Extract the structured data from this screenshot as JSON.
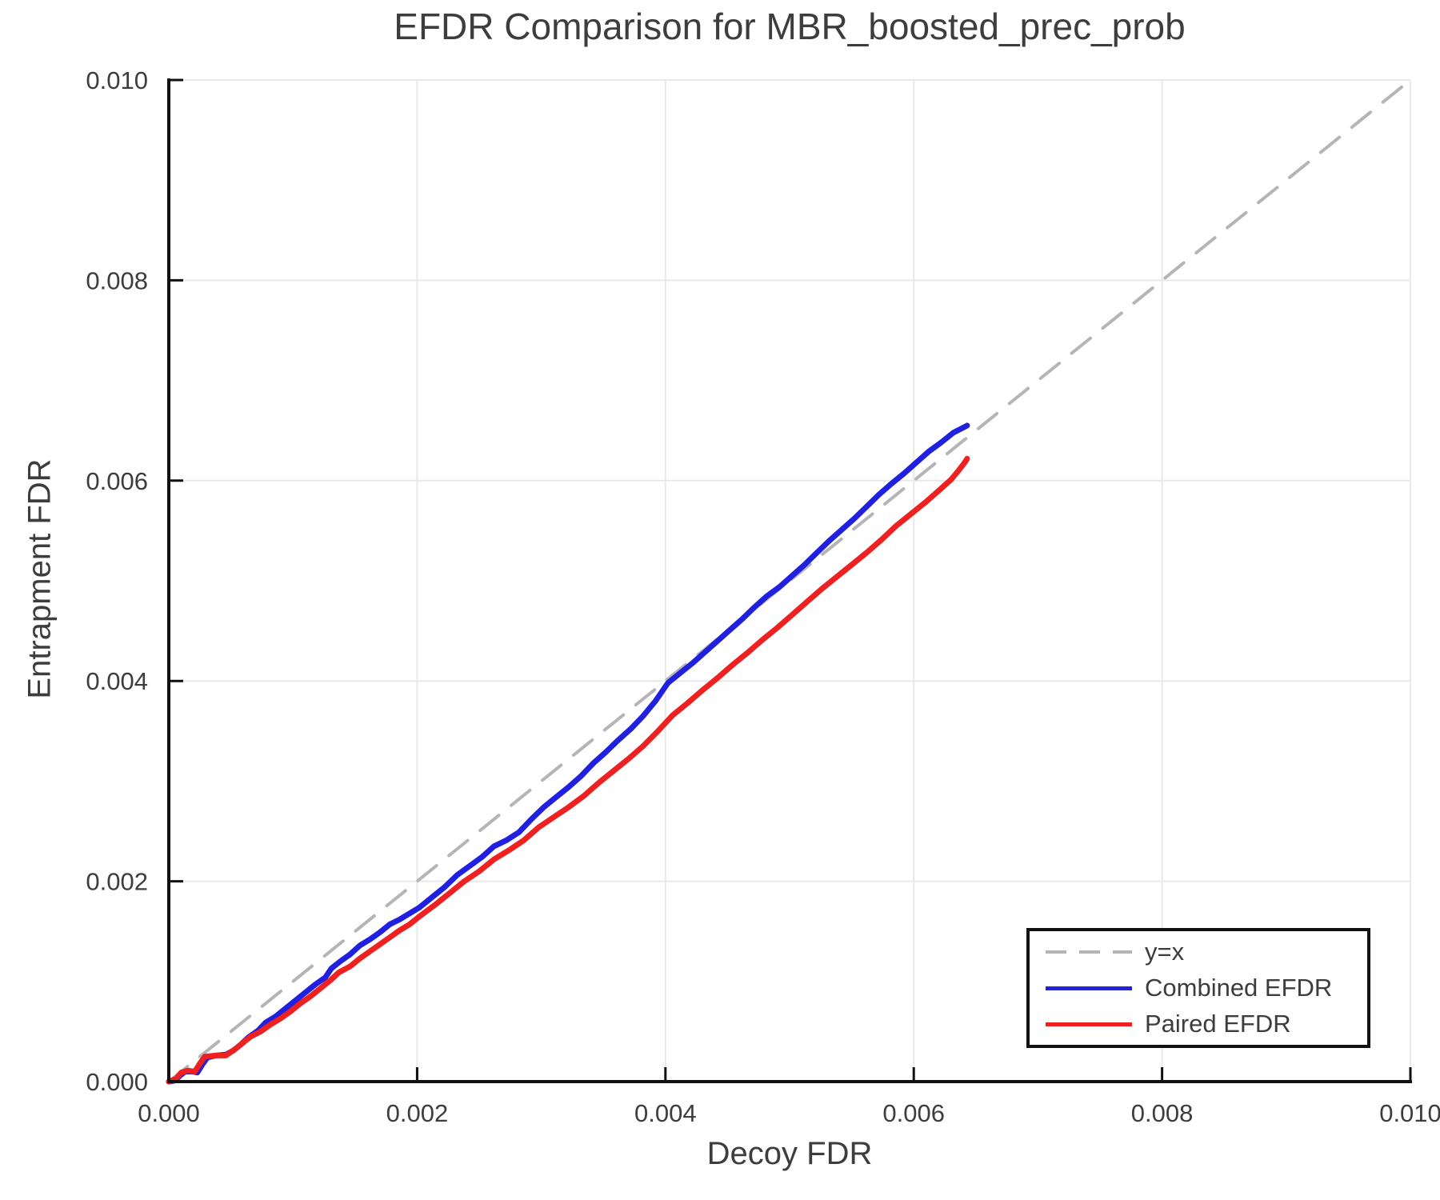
{
  "chart_data": {
    "type": "line",
    "title": "EFDR Comparison for MBR_boosted_prec_prob",
    "xlabel": "Decoy FDR",
    "ylabel": "Entrapment FDR",
    "xlim": [
      0.0,
      0.01
    ],
    "ylim": [
      0.0,
      0.01
    ],
    "x_ticks": [
      "0.000",
      "0.002",
      "0.004",
      "0.006",
      "0.008",
      "0.010"
    ],
    "y_ticks": [
      "0.000",
      "0.002",
      "0.004",
      "0.006",
      "0.008",
      "0.010"
    ],
    "x_tick_values": [
      0.0,
      0.002,
      0.004,
      0.006,
      0.008,
      0.01
    ],
    "y_tick_values": [
      0.0,
      0.002,
      0.004,
      0.006,
      0.008,
      0.01
    ],
    "grid": true,
    "legend": {
      "position": "lower right",
      "entries": [
        {
          "label": "y=x",
          "color": "#b5b5b5",
          "dashed": true
        },
        {
          "label": "Combined EFDR",
          "color": "#2020e0",
          "dashed": false
        },
        {
          "label": "Paired EFDR",
          "color": "#ee2020",
          "dashed": false
        }
      ]
    },
    "series": [
      {
        "name": "y=x",
        "color": "#b5b5b5",
        "style": "dashed",
        "width": 4,
        "points": [
          [
            0.0,
            0.0
          ],
          [
            0.01,
            0.01
          ]
        ]
      },
      {
        "name": "Combined EFDR",
        "color": "#2020e0",
        "style": "solid",
        "width": 7,
        "points": [
          [
            0.0,
            0.0
          ],
          [
            5e-05,
            1e-05
          ],
          [
            9e-05,
            6e-05
          ],
          [
            0.00013,
            0.0001
          ],
          [
            0.00019,
            0.0001
          ],
          [
            0.00023,
            9e-05
          ],
          [
            0.00027,
            0.00017
          ],
          [
            0.00031,
            0.00024
          ],
          [
            0.00038,
            0.00026
          ],
          [
            0.00046,
            0.00027
          ],
          [
            0.00052,
            0.00031
          ],
          [
            0.00058,
            0.00037
          ],
          [
            0.00064,
            0.00044
          ],
          [
            0.00072,
            0.00051
          ],
          [
            0.00078,
            0.00059
          ],
          [
            0.00086,
            0.00065
          ],
          [
            0.00094,
            0.00073
          ],
          [
            0.00102,
            0.00081
          ],
          [
            0.0011,
            0.00089
          ],
          [
            0.00118,
            0.00097
          ],
          [
            0.00126,
            0.00104
          ],
          [
            0.00131,
            0.00113
          ],
          [
            0.00138,
            0.0012
          ],
          [
            0.00146,
            0.00127
          ],
          [
            0.00154,
            0.00136
          ],
          [
            0.00162,
            0.00142
          ],
          [
            0.0017,
            0.00149
          ],
          [
            0.00178,
            0.00157
          ],
          [
            0.00186,
            0.00162
          ],
          [
            0.00194,
            0.00168
          ],
          [
            0.00202,
            0.00174
          ],
          [
            0.00212,
            0.00184
          ],
          [
            0.00222,
            0.00194
          ],
          [
            0.00232,
            0.00206
          ],
          [
            0.00242,
            0.00215
          ],
          [
            0.00252,
            0.00224
          ],
          [
            0.00262,
            0.00235
          ],
          [
            0.00272,
            0.00241
          ],
          [
            0.00282,
            0.00249
          ],
          [
            0.00292,
            0.00262
          ],
          [
            0.00302,
            0.00274
          ],
          [
            0.00312,
            0.00284
          ],
          [
            0.00322,
            0.00294
          ],
          [
            0.00332,
            0.00305
          ],
          [
            0.00342,
            0.00318
          ],
          [
            0.00352,
            0.00329
          ],
          [
            0.00362,
            0.00341
          ],
          [
            0.00372,
            0.00352
          ],
          [
            0.00382,
            0.00365
          ],
          [
            0.00392,
            0.0038
          ],
          [
            0.00402,
            0.00398
          ],
          [
            0.00412,
            0.00408
          ],
          [
            0.00422,
            0.00418
          ],
          [
            0.00432,
            0.00429
          ],
          [
            0.00442,
            0.0044
          ],
          [
            0.00452,
            0.00451
          ],
          [
            0.00462,
            0.00462
          ],
          [
            0.00472,
            0.00474
          ],
          [
            0.00482,
            0.00485
          ],
          [
            0.00492,
            0.00494
          ],
          [
            0.00502,
            0.00505
          ],
          [
            0.00512,
            0.00516
          ],
          [
            0.00522,
            0.00528
          ],
          [
            0.00532,
            0.0054
          ],
          [
            0.00542,
            0.00551
          ],
          [
            0.00552,
            0.00562
          ],
          [
            0.00562,
            0.00574
          ],
          [
            0.00572,
            0.00586
          ],
          [
            0.00582,
            0.00597
          ],
          [
            0.00592,
            0.00607
          ],
          [
            0.00602,
            0.00618
          ],
          [
            0.00612,
            0.00629
          ],
          [
            0.00622,
            0.00638
          ],
          [
            0.00632,
            0.00648
          ],
          [
            0.0064,
            0.00653
          ],
          [
            0.00643,
            0.00655
          ]
        ]
      },
      {
        "name": "Paired EFDR",
        "color": "#ee2020",
        "style": "solid",
        "width": 7,
        "points": [
          [
            0.0,
            0.0
          ],
          [
            6e-05,
            3e-05
          ],
          [
            0.0001,
            9e-05
          ],
          [
            0.00015,
            0.00011
          ],
          [
            0.00021,
            0.0001
          ],
          [
            0.00025,
            0.00018
          ],
          [
            0.00029,
            0.00025
          ],
          [
            0.00038,
            0.00026
          ],
          [
            0.00046,
            0.00026
          ],
          [
            0.00054,
            0.00033
          ],
          [
            0.0006,
            0.00039
          ],
          [
            0.00066,
            0.00045
          ],
          [
            0.00074,
            0.0005
          ],
          [
            0.00082,
            0.00057
          ],
          [
            0.0009,
            0.00063
          ],
          [
            0.00098,
            0.0007
          ],
          [
            0.00106,
            0.00078
          ],
          [
            0.00114,
            0.00085
          ],
          [
            0.00122,
            0.00093
          ],
          [
            0.0013,
            0.00101
          ],
          [
            0.00137,
            0.00109
          ],
          [
            0.00146,
            0.00115
          ],
          [
            0.00154,
            0.00123
          ],
          [
            0.00162,
            0.0013
          ],
          [
            0.0017,
            0.00137
          ],
          [
            0.00178,
            0.00144
          ],
          [
            0.00186,
            0.00151
          ],
          [
            0.00194,
            0.00157
          ],
          [
            0.00202,
            0.00165
          ],
          [
            0.00214,
            0.00176
          ],
          [
            0.00226,
            0.00188
          ],
          [
            0.00238,
            0.002
          ],
          [
            0.0025,
            0.0021
          ],
          [
            0.00262,
            0.00222
          ],
          [
            0.00274,
            0.00231
          ],
          [
            0.00286,
            0.00241
          ],
          [
            0.00298,
            0.00254
          ],
          [
            0.0031,
            0.00264
          ],
          [
            0.00322,
            0.00274
          ],
          [
            0.00334,
            0.00285
          ],
          [
            0.00346,
            0.00298
          ],
          [
            0.00358,
            0.0031
          ],
          [
            0.0037,
            0.00322
          ],
          [
            0.00382,
            0.00335
          ],
          [
            0.00394,
            0.0035
          ],
          [
            0.00406,
            0.00366
          ],
          [
            0.00418,
            0.00378
          ],
          [
            0.0043,
            0.00391
          ],
          [
            0.00442,
            0.00403
          ],
          [
            0.00454,
            0.00416
          ],
          [
            0.00466,
            0.00428
          ],
          [
            0.00478,
            0.00441
          ],
          [
            0.0049,
            0.00453
          ],
          [
            0.00502,
            0.00466
          ],
          [
            0.00514,
            0.00479
          ],
          [
            0.00526,
            0.00492
          ],
          [
            0.00538,
            0.00504
          ],
          [
            0.0055,
            0.00516
          ],
          [
            0.00562,
            0.00528
          ],
          [
            0.00574,
            0.00541
          ],
          [
            0.00586,
            0.00555
          ],
          [
            0.00598,
            0.00567
          ],
          [
            0.0061,
            0.00579
          ],
          [
            0.00622,
            0.00592
          ],
          [
            0.0063,
            0.00601
          ],
          [
            0.00636,
            0.0061
          ],
          [
            0.00641,
            0.00618
          ],
          [
            0.00643,
            0.00622
          ]
        ]
      }
    ],
    "style": {
      "text_color": "#3d3d3d",
      "spine_color": "#111111",
      "grid_color": "#e9e9e9",
      "tick_color": "#111111",
      "background": "#ffffff"
    }
  }
}
